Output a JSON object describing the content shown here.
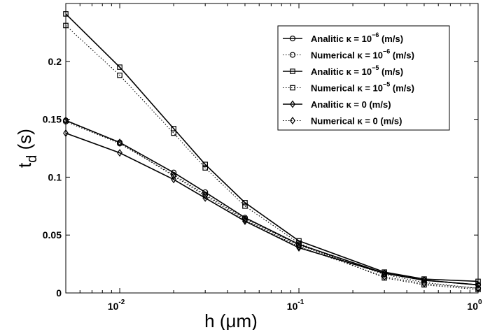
{
  "chart_data": {
    "type": "line",
    "xscale": "log",
    "x": [
      0.005,
      0.01,
      0.02,
      0.03,
      0.05,
      0.1,
      0.3,
      0.5,
      1
    ],
    "xlim": [
      0.005,
      1
    ],
    "ylim": [
      0,
      0.25
    ],
    "xticks": [
      0.01,
      0.1,
      1
    ],
    "xtick_labels": [
      {
        "base": "10",
        "exp": "-2"
      },
      {
        "base": "10",
        "exp": "-1"
      },
      {
        "base": "10",
        "exp": "0"
      }
    ],
    "yticks": [
      0,
      0.05,
      0.1,
      0.15,
      0.2
    ],
    "ytick_labels": [
      "0",
      "0.05",
      "0.1",
      "0.15",
      "0.2"
    ],
    "xlabel": "h (μm)",
    "ylabel": {
      "main": "t",
      "sub": "d",
      "rest": " (s)"
    },
    "grid": false,
    "legend_position": "top-right",
    "series": [
      {
        "name": "Analitic κ = 10^{-6} (m/s)",
        "name_parts": {
          "pre": "Analitic κ = 10",
          "exp": "−6",
          "post": " (m/s)"
        },
        "marker": "circle",
        "line": "solid",
        "values": [
          0.149,
          0.13,
          0.104,
          0.087,
          0.065,
          0.042,
          0.017,
          0.011,
          0.007
        ]
      },
      {
        "name": "Numerical κ = 10^{-6} (m/s)",
        "name_parts": {
          "pre": "Numerical κ = 10",
          "exp": "−6",
          "post": " (m/s)"
        },
        "marker": "circle",
        "line": "dotted",
        "values": [
          0.148,
          0.129,
          0.102,
          0.085,
          0.064,
          0.041,
          0.016,
          0.009,
          0.004
        ]
      },
      {
        "name": "Analitic κ = 10^{-5} (m/s)",
        "name_parts": {
          "pre": "Analitic κ = 10",
          "exp": "−5",
          "post": " (m/s)"
        },
        "marker": "square",
        "line": "solid",
        "values": [
          0.241,
          0.195,
          0.142,
          0.111,
          0.078,
          0.045,
          0.018,
          0.012,
          0.01
        ]
      },
      {
        "name": "Numerical κ = 10^{-5} (m/s)",
        "name_parts": {
          "pre": "Numerical κ = 10",
          "exp": "−5",
          "post": " (m/s)"
        },
        "marker": "square",
        "line": "dotted",
        "values": [
          0.231,
          0.188,
          0.138,
          0.108,
          0.075,
          0.043,
          0.013,
          0.007,
          0.003
        ]
      },
      {
        "name": "Analitic κ = 0 (m/s)",
        "name_parts": {
          "pre": "Analitic κ = 0 (m/s)",
          "exp": "",
          "post": ""
        },
        "marker": "diamond",
        "line": "solid",
        "values": [
          0.138,
          0.121,
          0.098,
          0.082,
          0.062,
          0.039,
          0.017,
          0.011,
          0.007
        ]
      },
      {
        "name": "Numerical  κ = 0 (m/s)",
        "name_parts": {
          "pre": "Numerical  κ = 0 (m/s)",
          "exp": "",
          "post": ""
        },
        "marker": "diamond",
        "line": "dotted",
        "values": [
          0.149,
          0.13,
          0.101,
          0.084,
          0.063,
          0.04,
          0.014,
          0.008,
          0.004
        ]
      }
    ]
  }
}
